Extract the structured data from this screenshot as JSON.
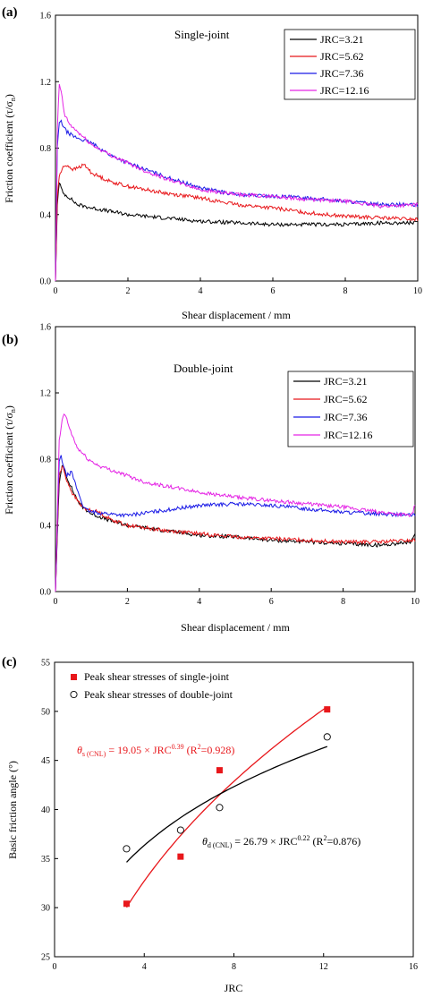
{
  "colors": {
    "JRC=3.21": "#000000",
    "JRC=5.62": "#e8171b",
    "JRC=7.36": "#1a1ae6",
    "JRC=12.16": "#e524e5",
    "single": "#e8171b",
    "double": "#000000"
  },
  "chart_data": [
    {
      "type": "line",
      "panel_label": "(a)",
      "title": "Single-joint",
      "xlabel": "Shear displacement / mm",
      "ylabel": "Friction coefficient (τ/σ",
      "ylabel_sub": "n",
      "ylabel_end": ")",
      "xlim": [
        0,
        10
      ],
      "ylim": [
        0,
        1.6
      ],
      "xticks": [
        "0",
        "2",
        "4",
        "6",
        "8",
        "10"
      ],
      "yticks": [
        "0.0",
        "0.4",
        "0.8",
        "1.2",
        "1.6"
      ],
      "legend_position": "top-right",
      "grid": false,
      "series": [
        {
          "name": "JRC=3.21",
          "x": [
            0,
            0.05,
            0.1,
            0.2,
            0.4,
            0.6,
            1.0,
            1.5,
            2,
            3,
            4,
            5,
            6,
            7,
            8,
            9,
            10
          ],
          "y": [
            0,
            0.45,
            0.6,
            0.53,
            0.5,
            0.46,
            0.44,
            0.42,
            0.4,
            0.38,
            0.36,
            0.35,
            0.34,
            0.34,
            0.34,
            0.35,
            0.35
          ]
        },
        {
          "name": "JRC=5.62",
          "x": [
            0,
            0.05,
            0.1,
            0.2,
            0.3,
            0.5,
            0.8,
            1.0,
            1.5,
            2,
            3,
            4,
            5,
            6,
            7,
            8,
            9,
            10
          ],
          "y": [
            0,
            0.5,
            0.63,
            0.68,
            0.7,
            0.67,
            0.7,
            0.65,
            0.6,
            0.57,
            0.53,
            0.5,
            0.46,
            0.44,
            0.41,
            0.39,
            0.38,
            0.37
          ]
        },
        {
          "name": "JRC=7.36",
          "x": [
            0,
            0.05,
            0.1,
            0.15,
            0.3,
            0.5,
            1.0,
            1.5,
            2,
            3,
            4,
            5,
            6,
            7,
            8,
            9,
            9.8,
            10
          ],
          "y": [
            0,
            0.8,
            0.95,
            0.96,
            0.9,
            0.87,
            0.83,
            0.76,
            0.71,
            0.63,
            0.56,
            0.52,
            0.51,
            0.5,
            0.48,
            0.46,
            0.46,
            0.45
          ]
        },
        {
          "name": "JRC=12.16",
          "x": [
            0,
            0.05,
            0.1,
            0.15,
            0.25,
            0.4,
            0.7,
            1.0,
            1.5,
            2,
            2.5,
            3,
            4,
            5,
            6,
            7,
            8,
            9,
            10
          ],
          "y": [
            0,
            0.9,
            1.18,
            1.15,
            1.0,
            0.94,
            0.88,
            0.82,
            0.76,
            0.71,
            0.66,
            0.62,
            0.55,
            0.52,
            0.51,
            0.49,
            0.48,
            0.45,
            0.46
          ]
        }
      ]
    },
    {
      "type": "line",
      "panel_label": "(b)",
      "title": "Double-joint",
      "xlabel": "Shear displacement / mm",
      "ylabel": "Friction coefficient (τ/σ",
      "ylabel_sub": "n",
      "ylabel_end": ")",
      "xlim": [
        0,
        10
      ],
      "ylim": [
        0,
        1.6
      ],
      "xticks": [
        "0",
        "2",
        "4",
        "6",
        "8",
        "10"
      ],
      "yticks": [
        "0.0",
        "0.4",
        "0.8",
        "1.2",
        "1.6"
      ],
      "legend_position": "top-right",
      "grid": false,
      "series": [
        {
          "name": "JRC=3.21",
          "x": [
            0,
            0.1,
            0.2,
            0.3,
            0.5,
            0.7,
            1.0,
            1.5,
            2,
            3,
            4,
            5,
            6,
            7,
            8,
            9,
            9.9,
            10
          ],
          "y": [
            0,
            0.65,
            0.77,
            0.7,
            0.6,
            0.52,
            0.47,
            0.43,
            0.4,
            0.37,
            0.34,
            0.33,
            0.31,
            0.3,
            0.29,
            0.28,
            0.3,
            0.34
          ]
        },
        {
          "name": "JRC=5.62",
          "x": [
            0,
            0.1,
            0.2,
            0.3,
            0.5,
            0.8,
            1.2,
            1.5,
            2,
            3,
            4,
            5,
            6,
            7,
            8,
            9,
            10
          ],
          "y": [
            0,
            0.7,
            0.76,
            0.68,
            0.58,
            0.5,
            0.48,
            0.44,
            0.4,
            0.37,
            0.35,
            0.33,
            0.32,
            0.31,
            0.3,
            0.3,
            0.31
          ]
        },
        {
          "name": "JRC=7.36",
          "x": [
            0,
            0.1,
            0.15,
            0.3,
            0.45,
            0.6,
            0.8,
            1.0,
            1.5,
            2,
            3,
            4,
            5,
            6,
            7,
            8,
            9,
            10
          ],
          "y": [
            0,
            0.78,
            0.82,
            0.7,
            0.72,
            0.62,
            0.5,
            0.48,
            0.47,
            0.46,
            0.49,
            0.52,
            0.53,
            0.52,
            0.5,
            0.48,
            0.47,
            0.46
          ]
        },
        {
          "name": "JRC=12.16",
          "x": [
            0,
            0.1,
            0.2,
            0.25,
            0.4,
            0.6,
            0.9,
            1.2,
            1.6,
            2,
            2.5,
            3,
            4,
            5,
            6,
            7,
            8,
            9,
            9.9,
            10
          ],
          "y": [
            0,
            0.9,
            1.05,
            1.08,
            0.98,
            0.87,
            0.8,
            0.76,
            0.73,
            0.7,
            0.66,
            0.64,
            0.6,
            0.57,
            0.55,
            0.53,
            0.51,
            0.48,
            0.46,
            0.52
          ]
        }
      ]
    },
    {
      "type": "scatter",
      "panel_label": "(c)",
      "xlabel": "JRC",
      "ylabel": "Basic friction angle (°)",
      "xlim": [
        0,
        16
      ],
      "ylim": [
        25,
        55
      ],
      "xticks": [
        "0",
        "4",
        "8",
        "12",
        "16"
      ],
      "yticks": [
        "25",
        "30",
        "35",
        "40",
        "45",
        "50",
        "55"
      ],
      "legend_position": "top-left",
      "grid": false,
      "series": [
        {
          "name": "Peak shear stresses of single-joint",
          "marker": "filled-square",
          "x": [
            3.21,
            5.62,
            7.36,
            12.16
          ],
          "y": [
            30.4,
            35.2,
            44.0,
            50.2
          ]
        },
        {
          "name": "Peak shear stresses of double-joint",
          "marker": "open-circle",
          "x": [
            3.21,
            5.62,
            7.36,
            12.16
          ],
          "y": [
            36.0,
            37.9,
            40.2,
            47.4
          ]
        }
      ],
      "fits": [
        {
          "series": "single",
          "coef": 19.05,
          "exp": 0.39,
          "r2": 0.928,
          "label_sym": "θ",
          "label_sub": "s (CNL)",
          "label_eq": " = 19.05 × JRC",
          "label_exp": "0.39",
          "label_r2": " (R",
          "label_r2sup": "2",
          "label_r2val": "=0.928)"
        },
        {
          "series": "double",
          "coef": 26.79,
          "exp": 0.22,
          "r2": 0.876,
          "label_sym": "θ",
          "label_sub": "d (CNL)",
          "label_eq": " = 26.79 × JRC",
          "label_exp": "0.22",
          "label_r2": " (R",
          "label_r2sup": "2",
          "label_r2val": "=0.876)"
        }
      ]
    }
  ]
}
